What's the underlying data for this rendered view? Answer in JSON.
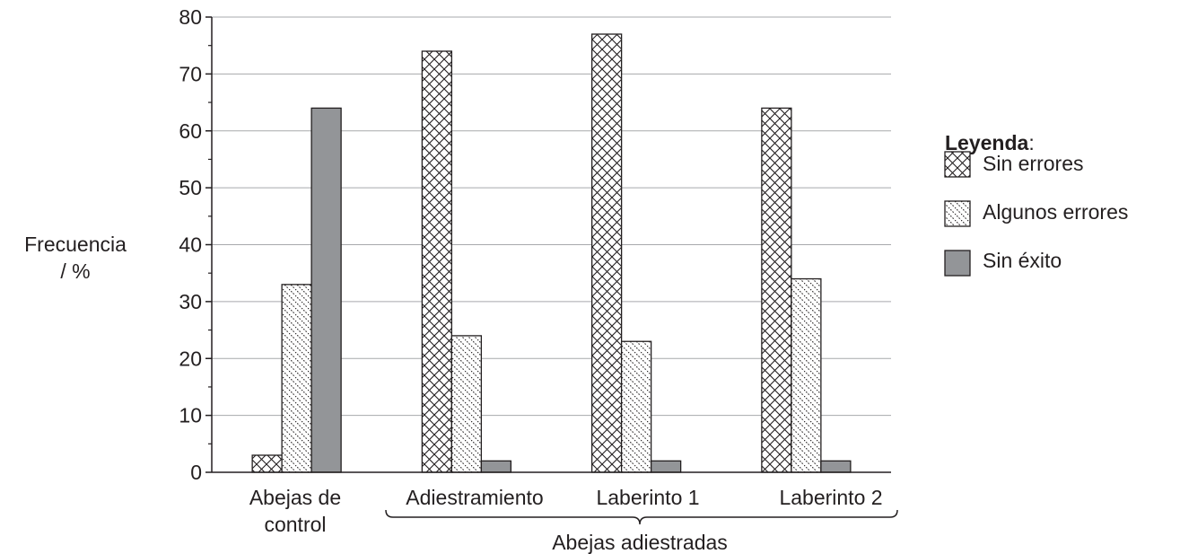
{
  "chart_data": {
    "type": "bar",
    "ylabel": [
      "Frecuencia",
      "/ %"
    ],
    "ylim": [
      0,
      80
    ],
    "y_ticks": [
      0,
      10,
      20,
      30,
      40,
      50,
      60,
      70,
      80
    ],
    "grid": true,
    "categories": [
      [
        "Abejas de",
        "control"
      ],
      [
        "Adiestramiento"
      ],
      [
        "Laberinto 1"
      ],
      [
        "Laberinto 2"
      ]
    ],
    "group_label": "Abejas adiestradas",
    "legend": {
      "title": "Leyenda",
      "title_suffix": ":",
      "placement": "right"
    },
    "series": [
      {
        "name": "Sin errores",
        "pattern": "crosshatch",
        "values": [
          3,
          74,
          77,
          64
        ]
      },
      {
        "name": "Algunos errores",
        "pattern": "dotted-diagonal",
        "values": [
          33,
          24,
          23,
          34
        ]
      },
      {
        "name": "Sin éxito",
        "pattern": "solid-gray",
        "values": [
          64,
          2,
          2,
          2
        ]
      }
    ],
    "colors": {
      "ink": "#231f20",
      "grid": "#a7a9ac",
      "solid_fill": "#939598"
    }
  }
}
